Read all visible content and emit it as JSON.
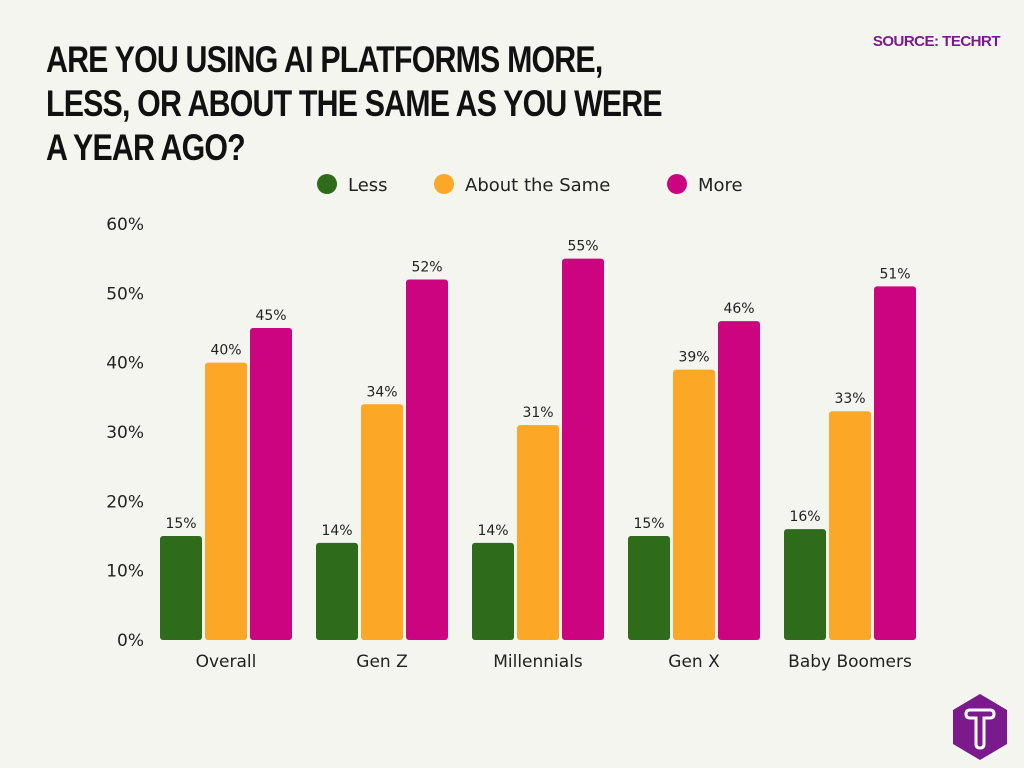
{
  "title": "Are you using AI platforms more, less, or about the same as you were a year ago?",
  "source": "SOURCE: TECHRT",
  "logo": {
    "letter": "T",
    "color": "#7a1a8c"
  },
  "chart_data": {
    "type": "bar",
    "categories": [
      "Overall",
      "Gen Z",
      "Millennials",
      "Gen X",
      "Baby Boomers"
    ],
    "series": [
      {
        "name": "Less",
        "color": "#2e6b1a",
        "values": [
          15,
          14,
          14,
          15,
          16
        ]
      },
      {
        "name": "About the Same",
        "color": "#fca726",
        "values": [
          40,
          34,
          31,
          39,
          33
        ]
      },
      {
        "name": "More",
        "color": "#cc0480",
        "values": [
          45,
          52,
          55,
          46,
          51
        ]
      }
    ],
    "ylim": [
      0,
      60
    ],
    "yticks": [
      "0%",
      "10%",
      "20%",
      "30%",
      "40%",
      "50%",
      "60%"
    ],
    "value_suffix": "%",
    "grid": false,
    "legend_position": "top-center"
  }
}
